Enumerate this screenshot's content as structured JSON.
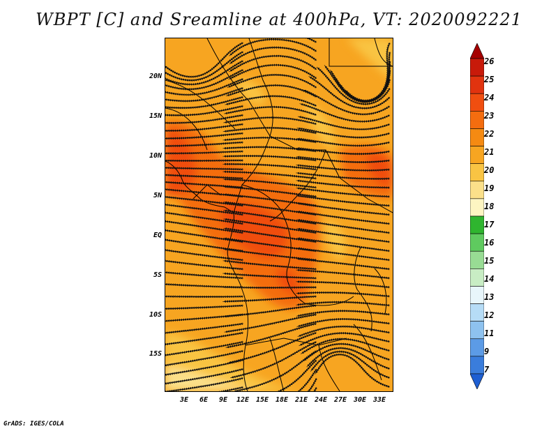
{
  "title": "WBPT [C] and Sreamline at 400hPa, VT: 2020092221",
  "credit": "GrADS: IGES/COLA",
  "map": {
    "lat_range": [
      -22,
      24
    ],
    "lon_range": [
      0,
      35
    ],
    "lat_labels": [
      "20N",
      "15N",
      "10N",
      "5N",
      "EQ",
      "5S",
      "10S",
      "15S"
    ],
    "lon_labels": [
      "3E",
      "6E",
      "9E",
      "12E",
      "15E",
      "18E",
      "21E",
      "24E",
      "27E",
      "30E",
      "33E"
    ],
    "field": "WBPT",
    "field_unit": "C",
    "overlay": "Streamlines",
    "level": "400hPa",
    "valid_time": "2020092221"
  },
  "colorbar": {
    "labels": [
      "26",
      "25",
      "24",
      "23",
      "22",
      "21",
      "20",
      "19",
      "18",
      "17",
      "16",
      "15",
      "14",
      "13",
      "12",
      "11",
      "9",
      "7"
    ],
    "colors": [
      "#a50000",
      "#c81a0a",
      "#e1330f",
      "#f04e10",
      "#f46d0f",
      "#f58a12",
      "#f7a521",
      "#f9c443",
      "#fbe08a",
      "#fdf5c2",
      "#2fb52f",
      "#5fca5f",
      "#98dc94",
      "#c8edc4",
      "#e8f6fb",
      "#b6dcf6",
      "#8ec2ef",
      "#5c9be6",
      "#3a7ddc",
      "#1e5fd2"
    ]
  }
}
